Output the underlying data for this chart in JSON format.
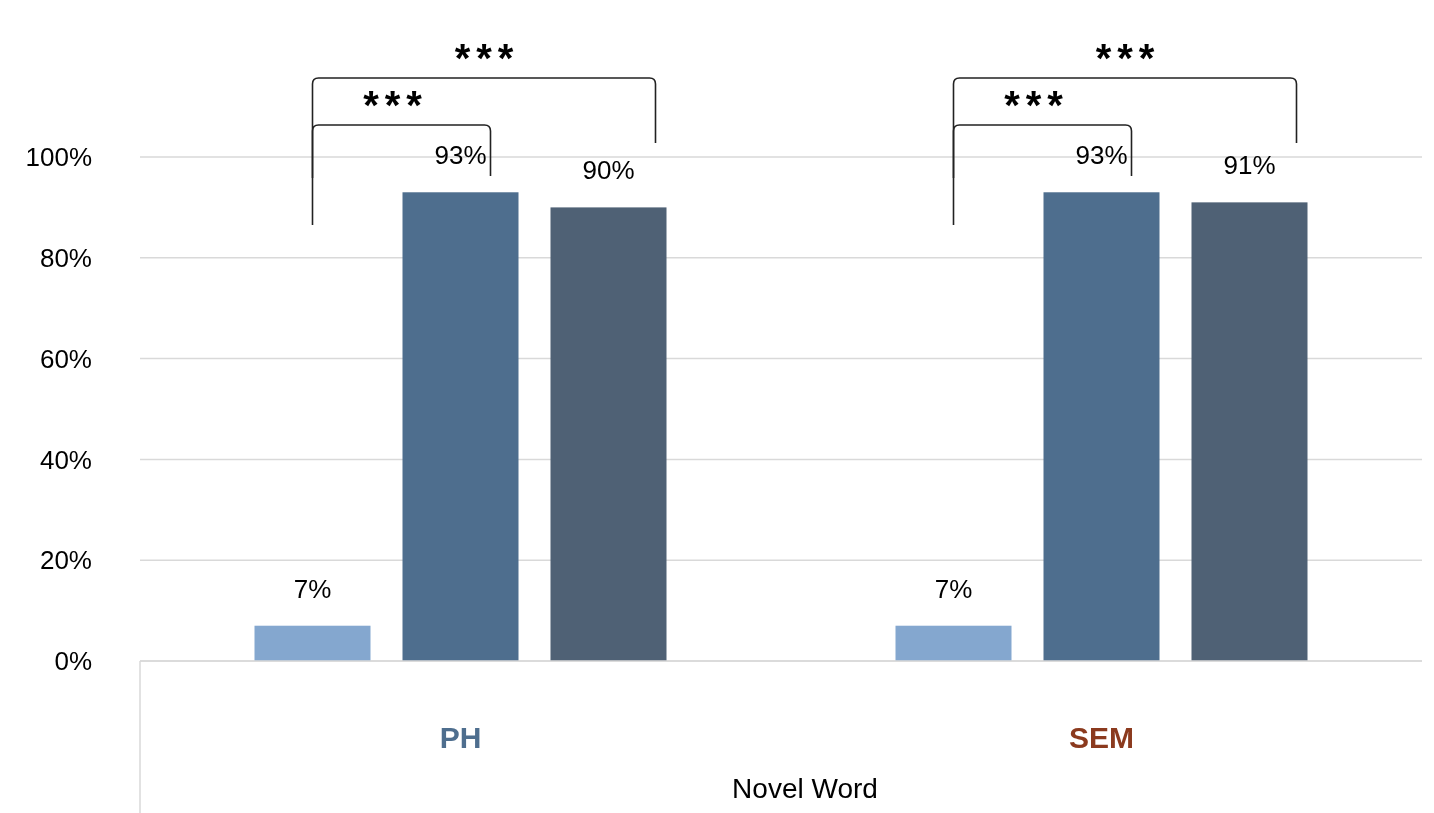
{
  "chart_data": {
    "type": "bar",
    "categories": [
      "PH",
      "SEM"
    ],
    "xlabel": "Novel Word",
    "series": [
      {
        "color": "#84a7cf",
        "values": [
          7,
          7
        ],
        "value_labels": [
          "7%",
          "7%"
        ]
      },
      {
        "color": "#4e6e8e",
        "values": [
          93,
          93
        ],
        "value_labels": [
          "93%",
          "93%"
        ]
      },
      {
        "color": "#4f6175",
        "values": [
          90,
          91
        ],
        "value_labels": [
          "90%",
          "91%"
        ]
      }
    ],
    "ylim": [
      0,
      100
    ],
    "yticks": [
      {
        "value": 0,
        "label": "0%"
      },
      {
        "value": 20,
        "label": "20%"
      },
      {
        "value": 40,
        "label": "40%"
      },
      {
        "value": 60,
        "label": "60%"
      },
      {
        "value": 80,
        "label": "80%"
      },
      {
        "value": 100,
        "label": "100%"
      }
    ],
    "grid": "y",
    "annotations": [
      "***",
      "***",
      "***",
      "***"
    ]
  }
}
